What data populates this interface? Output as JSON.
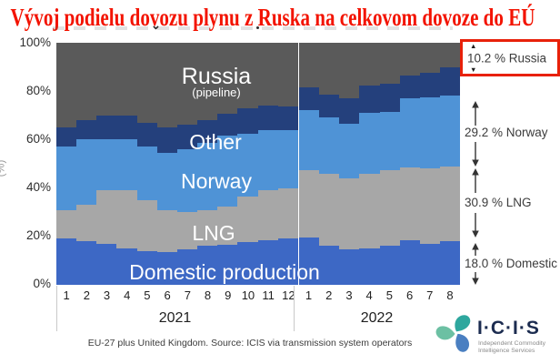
{
  "title": "Vývoj podielu dovozu plynu z Ruska na celkovom dovoze do EÚ",
  "title_color": "#f31300",
  "y_axis": {
    "ticks": [
      "100%",
      "80%",
      "60%",
      "40%",
      "20%",
      "0%"
    ],
    "label_fragment": "(%)"
  },
  "x_axis": {
    "years": [
      "2021",
      "2022"
    ]
  },
  "plot_labels": {
    "russia": "Russia",
    "russia_sub": "(pipeline)",
    "other": "Other",
    "norway": "Norway",
    "lng": "LNG",
    "domestic": "Domestic production"
  },
  "annotations": [
    {
      "label": "10.2 % Russia",
      "highlighted": true
    },
    {
      "label": "29.2 % Norway",
      "highlighted": false
    },
    {
      "label": "30.9 % LNG",
      "highlighted": false
    },
    {
      "label": "18.0 % Domestic",
      "highlighted": false
    }
  ],
  "highlight_box_color": "#e8210a",
  "footnote": "EU-27 plus United Kingdom. Source: ICIS via transmission system operators",
  "logo": {
    "text": "I·C·I·S",
    "subtext_line1": "Independent Commodity",
    "subtext_line2": "Intelligence Services"
  },
  "chart_data": {
    "type": "area",
    "stacked": true,
    "unit": "%",
    "ylim": [
      0,
      100
    ],
    "grid": false,
    "x": [
      "1",
      "2",
      "3",
      "4",
      "5",
      "6",
      "7",
      "8",
      "9",
      "10",
      "11",
      "12",
      "1",
      "2",
      "3",
      "4",
      "5",
      "6",
      "7",
      "8"
    ],
    "x_year_split_index": 12,
    "series": [
      {
        "key": "russia",
        "name": "Russia (pipeline)",
        "color": "#5a5a5a",
        "values": [
          35,
          32,
          30,
          30,
          33,
          35,
          34,
          32,
          29.5,
          27,
          26,
          26.5,
          18.5,
          21.5,
          23,
          17.5,
          17,
          13.5,
          12.5,
          10.2
        ]
      },
      {
        "key": "other",
        "name": "Other",
        "color": "#24407c",
        "values": [
          8,
          8,
          10,
          10,
          10,
          10.5,
          10,
          9.5,
          9,
          10.5,
          10,
          9.5,
          9.5,
          9.5,
          10.5,
          11.5,
          11.5,
          9.5,
          10,
          11.7
        ]
      },
      {
        "key": "norway",
        "name": "Norway",
        "color": "#4f93d6",
        "values": [
          26,
          27,
          21,
          21,
          22,
          23.5,
          26,
          27.5,
          29,
          26,
          25,
          24,
          24.5,
          23,
          22.5,
          25,
          24,
          28.5,
          29.5,
          29.2
        ]
      },
      {
        "key": "lng",
        "name": "LNG",
        "color": "#a7a7a7",
        "values": [
          12,
          15,
          22,
          24,
          21,
          17.5,
          15.5,
          15,
          16,
          19,
          20.5,
          21,
          28,
          30,
          29.5,
          31,
          31.5,
          30,
          31,
          30.9
        ]
      },
      {
        "key": "domestic",
        "name": "Domestic production",
        "color": "#3d68c5",
        "values": [
          19,
          18,
          17,
          15,
          14,
          13.5,
          14.5,
          16,
          16.5,
          17.5,
          18.5,
          19,
          19.5,
          16,
          14.5,
          15,
          16,
          18.5,
          17,
          18
        ]
      }
    ]
  }
}
